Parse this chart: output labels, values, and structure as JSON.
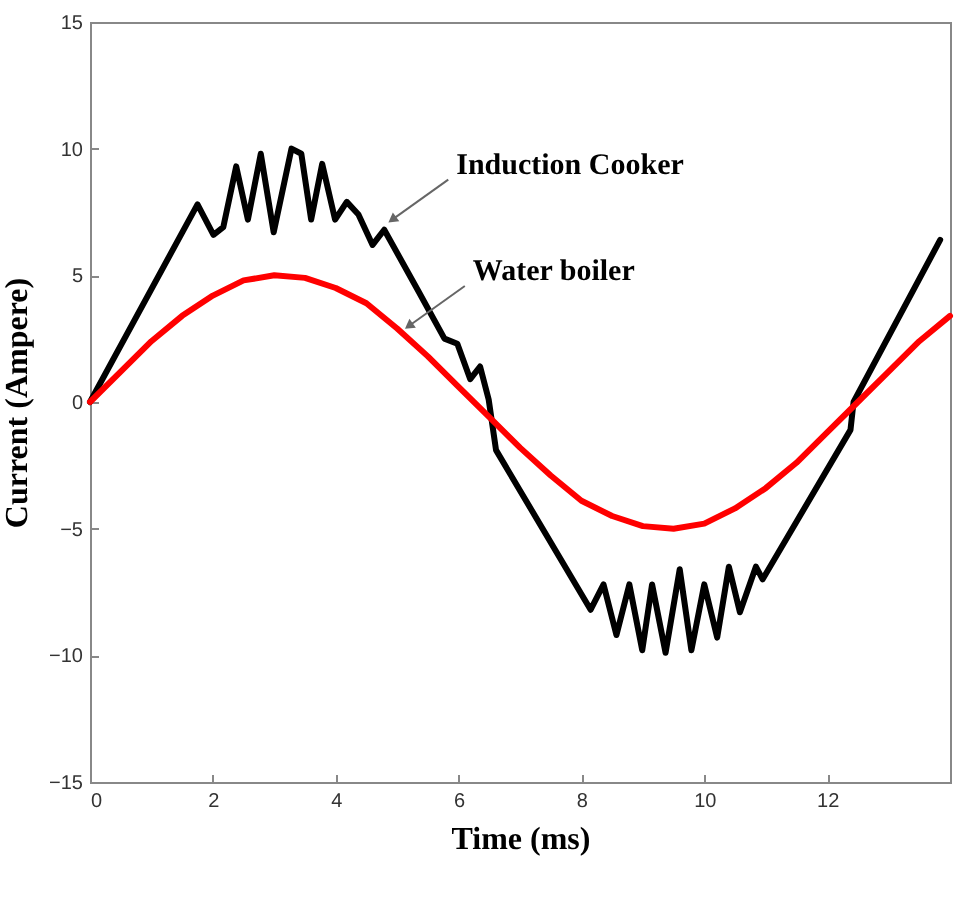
{
  "chart_data": {
    "type": "line",
    "xlabel": "Time (ms)",
    "ylabel": "Current (Ampere)",
    "xlim": [
      0,
      14
    ],
    "ylim": [
      -15,
      15
    ],
    "xticks": [
      0,
      2,
      4,
      6,
      8,
      10,
      12
    ],
    "yticks": [
      -15,
      -10,
      -5,
      0,
      5,
      10,
      15
    ],
    "grid": false,
    "legend": false,
    "marker": "none",
    "line_style": "solid",
    "series": [
      {
        "color": "#000000",
        "x": [
          0,
          1.75,
          2.01,
          2.17,
          2.38,
          2.57,
          2.78,
          2.99,
          3.28,
          3.44,
          3.6,
          3.78,
          3.99,
          4.18,
          4.37,
          4.6,
          4.79,
          5.34,
          5.77,
          5.98,
          6.19,
          6.35,
          6.49,
          6.61,
          8.15,
          8.36,
          8.57,
          8.78,
          8.99,
          9.15,
          9.37,
          9.6,
          9.79,
          10.0,
          10.21,
          10.4,
          10.58,
          10.84,
          10.95,
          12.38,
          12.43,
          13.84
        ],
        "values": [
          0,
          7.8,
          6.6,
          6.9,
          9.3,
          7.2,
          9.8,
          6.7,
          10.0,
          9.8,
          7.2,
          9.4,
          7.2,
          7.9,
          7.4,
          6.2,
          6.8,
          4.4,
          2.5,
          2.3,
          0.9,
          1.4,
          0.1,
          -1.9,
          -8.2,
          -7.2,
          -9.2,
          -7.2,
          -9.8,
          -7.2,
          -9.9,
          -6.6,
          -9.8,
          -7.2,
          -9.3,
          -6.5,
          -8.3,
          -6.5,
          -7.0,
          -1.1,
          0,
          6.4
        ]
      },
      {
        "color": "#ff0000",
        "x": [
          0,
          0.5,
          1,
          1.5,
          2,
          2.5,
          3,
          3.5,
          4,
          4.5,
          5,
          5.5,
          6,
          6.5,
          7,
          7.5,
          8,
          8.5,
          9,
          9.5,
          10,
          10.5,
          11,
          11.5,
          12,
          12.5,
          13,
          13.5,
          14
        ],
        "values": [
          0,
          1.2,
          2.4,
          3.4,
          4.2,
          4.8,
          5.0,
          4.9,
          4.5,
          3.9,
          2.9,
          1.8,
          0.6,
          -0.6,
          -1.8,
          -2.9,
          -3.9,
          -4.5,
          -4.9,
          -5.0,
          -4.8,
          -4.2,
          -3.4,
          -2.4,
          -1.2,
          0,
          1.2,
          2.4,
          3.4
        ]
      }
    ],
    "annotations": [
      {
        "text": "Induction Cooker",
        "x": 4.92,
        "y": 7.2
      },
      {
        "text": "Water boiler",
        "x": 5.19,
        "y": 3.0
      }
    ]
  }
}
